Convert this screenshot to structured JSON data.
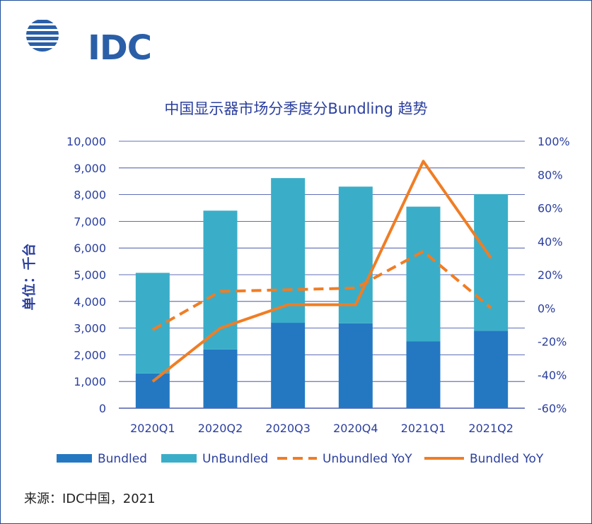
{
  "logo": {
    "text": "IDC"
  },
  "source": "来源：IDC中国，2021",
  "colors": {
    "bundled": "#2478c2",
    "unbundled": "#3aaec8",
    "yoy": "#f07d24",
    "axis": "#2b3f9e",
    "grid": "#2b3f9e"
  },
  "chart_data": {
    "type": "bar",
    "title": "中国显示器市场分季度分Bundling 趋势",
    "ylabel": "单位：千台",
    "xlabel": "",
    "categories": [
      "2020Q1",
      "2020Q2",
      "2020Q3",
      "2020Q4",
      "2021Q1",
      "2021Q2"
    ],
    "ylim": [
      0,
      10000
    ],
    "y2lim": [
      -60,
      100
    ],
    "yticks": [
      "0",
      "1,000",
      "2,000",
      "3,000",
      "4,000",
      "5,000",
      "6,000",
      "7,000",
      "8,000",
      "9,000",
      "10,000"
    ],
    "y2ticks": [
      "-60%",
      "-40%",
      "-20%",
      "0%",
      "20%",
      "40%",
      "60%",
      "80%",
      "100%"
    ],
    "stacked": true,
    "series": [
      {
        "name": "Bundled",
        "kind": "bar",
        "values": [
          1300,
          2200,
          3200,
          3180,
          2500,
          2900
        ]
      },
      {
        "name": "UnBundled",
        "kind": "bar",
        "values": [
          3770,
          5200,
          5420,
          5120,
          5050,
          5120
        ]
      },
      {
        "name": "Unbundled YoY",
        "kind": "line",
        "style": "dashed",
        "axis": "right",
        "values": [
          -13,
          10,
          11,
          12,
          34,
          0
        ]
      },
      {
        "name": "Bundled YoY",
        "kind": "line",
        "style": "solid",
        "axis": "right",
        "values": [
          -44,
          -12,
          2,
          2,
          88,
          30
        ]
      }
    ],
    "legend": "bottom"
  }
}
